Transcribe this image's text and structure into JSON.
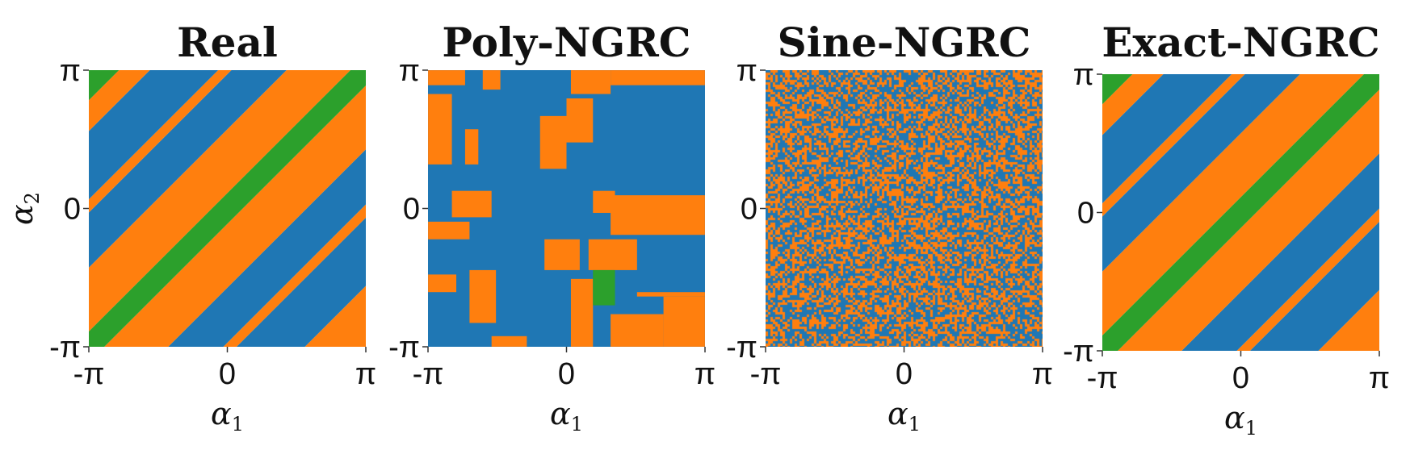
{
  "colors": {
    "blue": "#1f77b4",
    "orange": "#ff7f0e",
    "green": "#2ca02c"
  },
  "chart_data": [
    {
      "type": "heatmap",
      "title": "Real",
      "xlabel": "α",
      "xlabel_sub": "1",
      "ylabel": "α",
      "ylabel_sub": "2",
      "xlim": [
        "-π",
        "π"
      ],
      "ylim": [
        "-π",
        "π"
      ],
      "xticks": [
        "-π",
        "0",
        "π"
      ],
      "yticks": [
        "-π",
        "0",
        "π"
      ],
      "pattern": "diagonal-stripes",
      "stripes": [
        {
          "c_min": -6.29,
          "c_max": -4.9,
          "color": "orange"
        },
        {
          "c_min": -4.9,
          "c_max": -3.35,
          "color": "blue"
        },
        {
          "c_min": -3.35,
          "c_max": -3.05,
          "color": "orange"
        },
        {
          "c_min": -3.05,
          "c_max": -1.8,
          "color": "blue"
        },
        {
          "c_min": -1.8,
          "c_max": -0.35,
          "color": "orange"
        },
        {
          "c_min": -0.35,
          "c_max": 0.35,
          "color": "green"
        },
        {
          "c_min": 0.35,
          "c_max": 1.8,
          "color": "orange"
        },
        {
          "c_min": 1.8,
          "c_max": 3.05,
          "color": "blue"
        },
        {
          "c_min": 3.05,
          "c_max": 3.35,
          "color": "orange"
        },
        {
          "c_min": 3.35,
          "c_max": 4.9,
          "color": "blue"
        },
        {
          "c_min": 4.9,
          "c_max": 5.6,
          "color": "orange"
        },
        {
          "c_min": 5.6,
          "c_max": 6.29,
          "color": "green"
        }
      ]
    },
    {
      "type": "heatmap",
      "title": "Poly-NGRC",
      "xlabel": "α",
      "xlabel_sub": "1",
      "ylabel": "",
      "ylabel_sub": "",
      "xlim": [
        "-π",
        "π"
      ],
      "ylim": [
        "-π",
        "π"
      ],
      "xticks": [
        "-π",
        "0",
        "π"
      ],
      "yticks": [
        "-π",
        "0",
        "π"
      ],
      "pattern": "patches",
      "background": "blue",
      "patches": [
        {
          "x": [
            -3.14,
            -2.3
          ],
          "y": [
            2.8,
            3.14
          ],
          "color": "orange"
        },
        {
          "x": [
            -1.9,
            -1.5
          ],
          "y": [
            2.7,
            3.14
          ],
          "color": "orange"
        },
        {
          "x": [
            0.1,
            1.0
          ],
          "y": [
            2.6,
            3.14
          ],
          "color": "orange"
        },
        {
          "x": [
            1.0,
            3.14
          ],
          "y": [
            2.8,
            3.14
          ],
          "color": "orange"
        },
        {
          "x": [
            -3.14,
            -2.6
          ],
          "y": [
            1.0,
            2.6
          ],
          "color": "orange"
        },
        {
          "x": [
            -2.3,
            -2.0
          ],
          "y": [
            1.0,
            1.8
          ],
          "color": "orange"
        },
        {
          "x": [
            -0.6,
            0.0
          ],
          "y": [
            0.9,
            2.1
          ],
          "color": "orange"
        },
        {
          "x": [
            0.0,
            0.6
          ],
          "y": [
            1.5,
            2.5
          ],
          "color": "orange"
        },
        {
          "x": [
            -2.6,
            -1.7
          ],
          "y": [
            -0.2,
            0.4
          ],
          "color": "orange"
        },
        {
          "x": [
            -3.14,
            -2.2
          ],
          "y": [
            -0.7,
            -0.3
          ],
          "color": "orange"
        },
        {
          "x": [
            1.0,
            3.14
          ],
          "y": [
            -0.6,
            0.3
          ],
          "color": "orange"
        },
        {
          "x": [
            0.6,
            1.1
          ],
          "y": [
            -0.1,
            0.4
          ],
          "color": "orange"
        },
        {
          "x": [
            -0.5,
            0.3
          ],
          "y": [
            -1.4,
            -0.7
          ],
          "color": "orange"
        },
        {
          "x": [
            0.5,
            1.6
          ],
          "y": [
            -1.4,
            -0.7
          ],
          "color": "orange"
        },
        {
          "x": [
            1.6,
            3.14
          ],
          "y": [
            -2.0,
            -1.9
          ],
          "color": "orange"
        },
        {
          "x": [
            -3.14,
            -2.5
          ],
          "y": [
            -1.9,
            -1.5
          ],
          "color": "orange"
        },
        {
          "x": [
            -2.2,
            -1.6
          ],
          "y": [
            -2.6,
            -1.4
          ],
          "color": "orange"
        },
        {
          "x": [
            0.1,
            0.6
          ],
          "y": [
            -3.14,
            -1.6
          ],
          "color": "orange"
        },
        {
          "x": [
            1.0,
            2.2
          ],
          "y": [
            -3.14,
            -2.4
          ],
          "color": "orange"
        },
        {
          "x": [
            2.2,
            3.14
          ],
          "y": [
            -3.14,
            -2.0
          ],
          "color": "orange"
        },
        {
          "x": [
            -1.7,
            -0.9
          ],
          "y": [
            -3.14,
            -2.9
          ],
          "color": "orange"
        },
        {
          "x": [
            0.6,
            1.1
          ],
          "y": [
            -2.2,
            -1.4
          ],
          "color": "green"
        }
      ]
    },
    {
      "type": "heatmap",
      "title": "Sine-NGRC",
      "xlabel": "α",
      "xlabel_sub": "1",
      "ylabel": "",
      "ylabel_sub": "",
      "xlim": [
        "-π",
        "π"
      ],
      "ylim": [
        "-π",
        "π"
      ],
      "xticks": [
        "-π",
        "0",
        "π"
      ],
      "yticks": [
        "-π",
        "0",
        "π"
      ],
      "pattern": "noise",
      "mix": [
        {
          "color": "blue",
          "share": 0.52
        },
        {
          "color": "orange",
          "share": 0.48
        }
      ]
    },
    {
      "type": "heatmap",
      "title": "Exact-NGRC",
      "xlabel": "α",
      "xlabel_sub": "1",
      "ylabel": "",
      "ylabel_sub": "",
      "xlim": [
        "-π",
        "π"
      ],
      "ylim": [
        "-π",
        "π"
      ],
      "xticks": [
        "-π",
        "0",
        "π"
      ],
      "yticks": [
        "-π",
        "0",
        "π"
      ],
      "pattern": "diagonal-stripes",
      "stripes": [
        {
          "c_min": -6.29,
          "c_max": -4.9,
          "color": "orange"
        },
        {
          "c_min": -4.9,
          "c_max": -3.35,
          "color": "blue"
        },
        {
          "c_min": -3.35,
          "c_max": -3.05,
          "color": "orange"
        },
        {
          "c_min": -3.05,
          "c_max": -1.8,
          "color": "blue"
        },
        {
          "c_min": -1.8,
          "c_max": -0.35,
          "color": "orange"
        },
        {
          "c_min": -0.35,
          "c_max": 0.35,
          "color": "green"
        },
        {
          "c_min": 0.35,
          "c_max": 1.8,
          "color": "orange"
        },
        {
          "c_min": 1.8,
          "c_max": 3.05,
          "color": "blue"
        },
        {
          "c_min": 3.05,
          "c_max": 3.35,
          "color": "orange"
        },
        {
          "c_min": 3.35,
          "c_max": 4.9,
          "color": "blue"
        },
        {
          "c_min": 4.9,
          "c_max": 5.6,
          "color": "orange"
        },
        {
          "c_min": 5.6,
          "c_max": 6.29,
          "color": "green"
        }
      ]
    }
  ]
}
